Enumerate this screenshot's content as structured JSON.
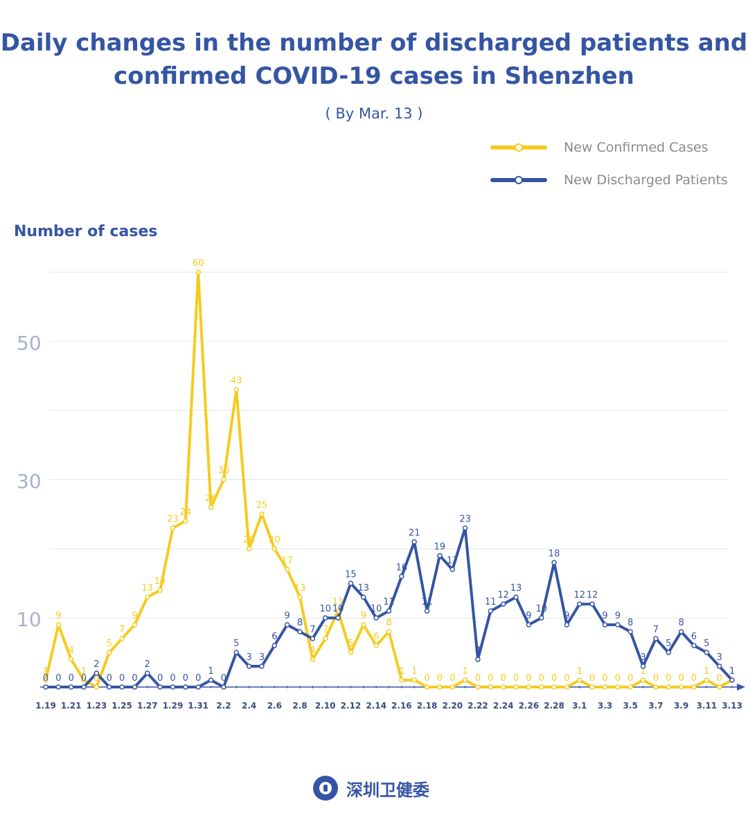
{
  "header": {
    "title_line1": "Daily changes in the number of discharged patients and",
    "title_line2": "confirmed COVID-19 cases in Shenzhen",
    "subtitle": "( By Mar. 13 )"
  },
  "logo": {
    "text": "深圳卫健委",
    "icon": "health-commission-emblem-icon"
  },
  "colors": {
    "confirmed": "#f5cb1f",
    "discharged": "#3555a4",
    "axis_tick": "#a9b1cc",
    "grid": "#e6e6e6"
  },
  "chart_data": {
    "type": "line",
    "ylabel": "Number of cases",
    "ylim": [
      0,
      60
    ],
    "yticks": [
      10,
      30,
      50
    ],
    "grid": true,
    "legend": "top-right",
    "x": [
      "1.19",
      "1.20",
      "1.21",
      "1.22",
      "1.23",
      "1.24",
      "1.25",
      "1.26",
      "1.27",
      "1.28",
      "1.29",
      "1.30",
      "1.31",
      "2.1",
      "2.2",
      "2.3",
      "2.4",
      "2.5",
      "2.6",
      "2.7",
      "2.8",
      "2.9",
      "2.10",
      "2.11",
      "2.12",
      "2.13",
      "2.14",
      "2.15",
      "2.16",
      "2.17",
      "2.18",
      "2.19",
      "2.20",
      "2.21",
      "2.22",
      "2.23",
      "2.24",
      "2.25",
      "2.26",
      "2.27",
      "2.28",
      "2.29",
      "3.1",
      "3.2",
      "3.3",
      "3.4",
      "3.5",
      "3.6",
      "3.7",
      "3.8",
      "3.9",
      "3.10",
      "3.11",
      "3.12",
      "3.13"
    ],
    "xtick_labels": [
      "1.19",
      "1.21",
      "1.23",
      "1.25",
      "1.27",
      "1.29",
      "1.31",
      "2.2",
      "2.4",
      "2.6",
      "2.8",
      "2.10",
      "2.12",
      "2.14",
      "2.16",
      "2.18",
      "2.20",
      "2.22",
      "2.24",
      "2.26",
      "2.28",
      "3.1",
      "3.3",
      "3.5",
      "3.7",
      "3.9",
      "3.11",
      "3.13"
    ],
    "series": [
      {
        "name": "New Confirmed Cases",
        "values": [
          1,
          9,
          4,
          1,
          0,
          5,
          7,
          9,
          13,
          14,
          23,
          24,
          60,
          26,
          30,
          43,
          20,
          25,
          20,
          17,
          13,
          4,
          7,
          11,
          5,
          9,
          6,
          8,
          1,
          1,
          0,
          0,
          0,
          1,
          0,
          0,
          0,
          0,
          0,
          0,
          0,
          0,
          1,
          0,
          0,
          0,
          0,
          1,
          0,
          0,
          0,
          0,
          1,
          0,
          1
        ]
      },
      {
        "name": "New Discharged Patients",
        "values": [
          0,
          0,
          0,
          0,
          2,
          0,
          0,
          0,
          2,
          0,
          0,
          0,
          0,
          1,
          0,
          5,
          3,
          3,
          6,
          9,
          8,
          7,
          10,
          10,
          15,
          13,
          10,
          11,
          16,
          21,
          11,
          19,
          17,
          23,
          4,
          11,
          12,
          13,
          9,
          10,
          18,
          9,
          12,
          12,
          9,
          9,
          8,
          3,
          7,
          5,
          8,
          6,
          5,
          3,
          1
        ]
      }
    ]
  }
}
